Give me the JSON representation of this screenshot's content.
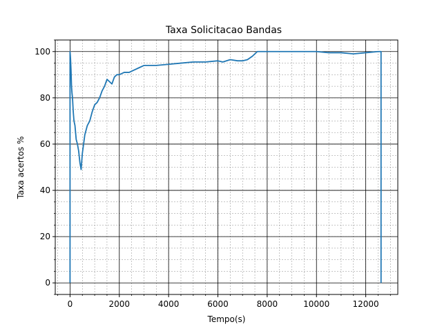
{
  "chart_data": {
    "type": "line",
    "title": "Taxa Solicitacao Bandas",
    "xlabel": "Tempo(s)",
    "ylabel": "Taxa acertos %",
    "xlim": [
      -600,
      13300
    ],
    "ylim": [
      -5,
      105
    ],
    "xticks": [
      0,
      2000,
      4000,
      6000,
      8000,
      10000,
      12000
    ],
    "yticks": [
      0,
      20,
      40,
      60,
      80,
      100
    ],
    "xtick_labels": [
      "0",
      "2000",
      "4000",
      "6000",
      "8000",
      "10000",
      "12000"
    ],
    "ytick_labels": [
      "0",
      "20",
      "40",
      "60",
      "80",
      "100"
    ],
    "grid": {
      "major": true,
      "minor": true
    },
    "line_color": "#1f77b4",
    "series": [
      {
        "x": [
          0,
          0,
          20,
          40,
          60,
          80,
          100,
          130,
          160,
          200,
          250,
          300,
          350,
          400,
          450,
          500,
          550,
          600,
          700,
          800,
          900,
          1000,
          1100,
          1200,
          1300,
          1400,
          1500,
          1600,
          1700,
          1800,
          1900,
          2000,
          2200,
          2400,
          2600,
          2800,
          3000,
          3500,
          4000,
          4500,
          5000,
          5500,
          6000,
          6200,
          6500,
          6800,
          7000,
          7200,
          7400,
          7600,
          8000,
          9000,
          10000,
          10500,
          11000,
          11500,
          12000,
          12500,
          12600,
          12620,
          12620
        ],
        "y": [
          0,
          100,
          97,
          92,
          85,
          82,
          80,
          74,
          70,
          68,
          62,
          60,
          57,
          52,
          49,
          56,
          60,
          64,
          68,
          70,
          74,
          77,
          78,
          80,
          83,
          85,
          88,
          87,
          86,
          89,
          90,
          90,
          91,
          91,
          92,
          93,
          94,
          94,
          94.5,
          95,
          95.5,
          95.5,
          96,
          95.5,
          96.5,
          96,
          96,
          96.5,
          98,
          100,
          100,
          100,
          100,
          99.5,
          99.5,
          99,
          99.5,
          100,
          100,
          100,
          0
        ]
      }
    ]
  }
}
